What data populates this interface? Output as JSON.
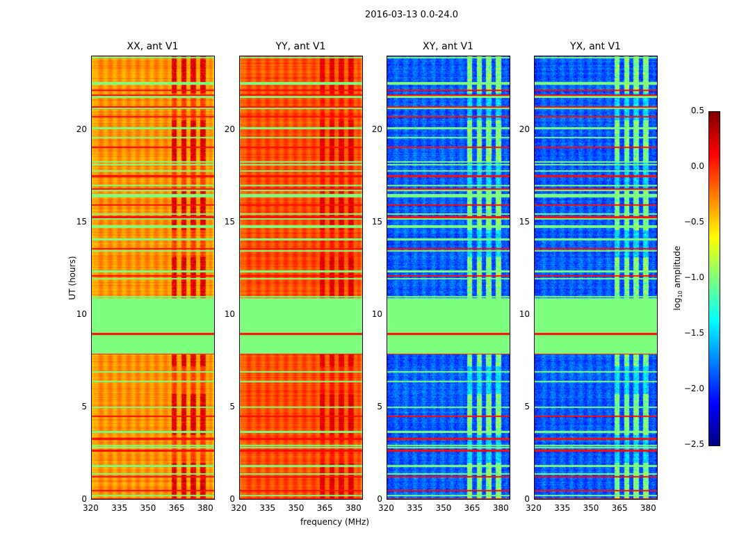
{
  "chart_data": {
    "type": "heatmap",
    "title": "2016-03-13 0.0-24.0",
    "xlabel": "frequency (MHz)",
    "ylabel": "UT (hours)",
    "xlim": [
      320,
      384.4
    ],
    "ylim": [
      0,
      24
    ],
    "xticks": [
      "320",
      "335",
      "350",
      "365",
      "380"
    ],
    "yticks": [
      "0",
      "5",
      "10",
      "15",
      "20"
    ],
    "colormap": "jet",
    "colorbar": {
      "label": "log10 amplitude",
      "label_main": "log",
      "label_sub": "10",
      "label_rest": " amplitude",
      "range": [
        -2.5,
        0.5
      ],
      "ticks": [
        "0.5",
        "0.0",
        "−0.5",
        "−1.0",
        "−1.5",
        "−2.0",
        "−2.5"
      ]
    },
    "flagged_interval_hours": [
      8.0,
      10.9
    ],
    "flagged_value": -1.0,
    "rfi_band_mhz": [
      362,
      382
    ],
    "panels": [
      {
        "title": "XX, ant V1",
        "base_level": -0.3,
        "rfi_level": 0.35,
        "show_ylabel": true
      },
      {
        "title": "YY, ant V1",
        "base_level": -0.1,
        "rfi_level": 0.25,
        "show_xlabel": true
      },
      {
        "title": "XY, ant V1",
        "base_level": -1.85,
        "rfi_level": -0.7
      },
      {
        "title": "YX, ant V1",
        "base_level": -1.85,
        "rfi_level": -0.7
      }
    ]
  }
}
